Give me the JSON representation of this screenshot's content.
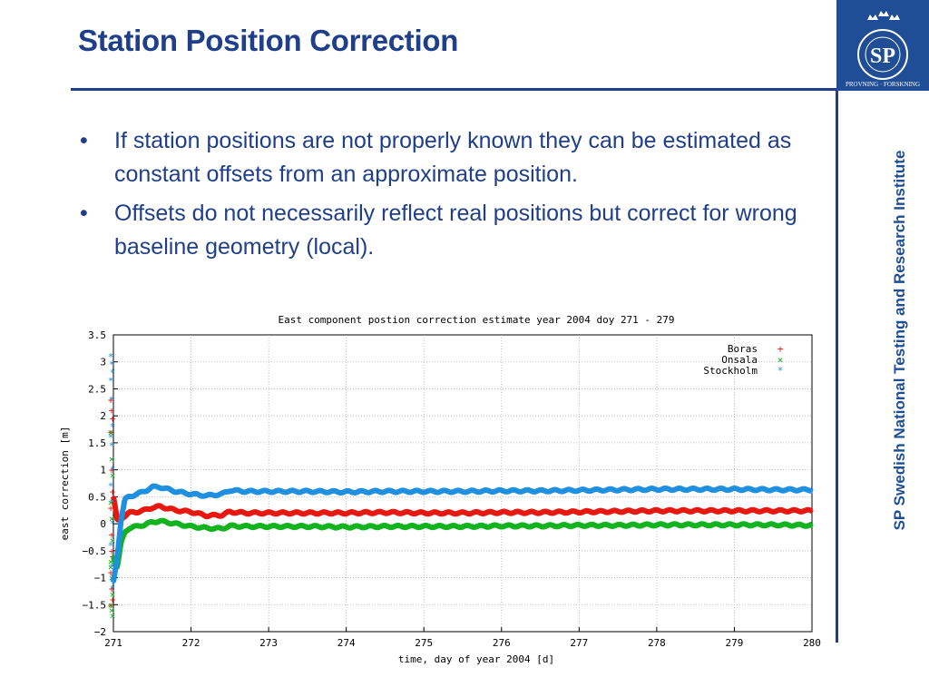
{
  "slide": {
    "title": "Station Position Correction",
    "sidebar_text": "SP Swedish National Testing and Research Institute",
    "logo": {
      "letters": "SP",
      "ring_text": "PROVNING · FORSKNING"
    },
    "bullets": [
      "If station positions are not properly known they can be estimated as constant offsets from an approximate position.",
      "Offsets do not necessarily reflect real positions but correct for wrong baseline geometry (local)."
    ],
    "bullet_symbol": "•",
    "colors": {
      "accent": "#1f3f8a",
      "logo_bg": "#1f4d96"
    }
  },
  "chart_data": {
    "type": "scatter",
    "title": "East component postion correction estimate year 2004 doy 271 - 279",
    "xlabel": "time, day of year 2004 [d]",
    "ylabel": "east correction [m]",
    "xlim": [
      271,
      280
    ],
    "ylim": [
      -2,
      3.5
    ],
    "xticks": [
      271,
      272,
      273,
      274,
      275,
      276,
      277,
      278,
      279,
      280
    ],
    "yticks": [
      -2,
      -1.5,
      -1,
      -0.5,
      0,
      0.5,
      1,
      1.5,
      2,
      2.5,
      3,
      3.5
    ],
    "grid": true,
    "legend_position": "top-right",
    "series": [
      {
        "name": "Boras",
        "marker": "+",
        "color": "#e8170f",
        "x": [
          271.0,
          271.05,
          271.1,
          271.15,
          271.2,
          271.3,
          271.4,
          271.5,
          271.6,
          271.8,
          272.0,
          272.2,
          272.4,
          272.5,
          272.7,
          273.0,
          273.5,
          274.0,
          274.5,
          275.0,
          275.5,
          276.0,
          276.5,
          277.0,
          277.5,
          278.0,
          278.5,
          279.0,
          279.5,
          280.0
        ],
        "y": [
          0.5,
          0.05,
          0.1,
          0.15,
          0.2,
          0.22,
          0.25,
          0.3,
          0.32,
          0.25,
          0.22,
          0.15,
          0.16,
          0.22,
          0.2,
          0.2,
          0.2,
          0.2,
          0.21,
          0.2,
          0.2,
          0.21,
          0.21,
          0.22,
          0.23,
          0.24,
          0.24,
          0.24,
          0.24,
          0.24
        ],
        "scatter_x": [
          271.0,
          271.0,
          271.0,
          271.0,
          271.0,
          271.0,
          271.0,
          271.0,
          271.0,
          271.0,
          271.0,
          271.0,
          271.0,
          271.0
        ],
        "scatter_y": [
          2.3,
          2.1,
          1.95,
          1.7,
          1.0,
          0.6,
          0.3,
          -0.2,
          -0.6,
          -0.9,
          -1.2,
          -1.4,
          -1.5,
          -0.5
        ]
      },
      {
        "name": "Onsala",
        "marker": "×",
        "color": "#13b31f",
        "x": [
          271.0,
          271.05,
          271.1,
          271.15,
          271.2,
          271.3,
          271.4,
          271.5,
          271.6,
          271.8,
          272.0,
          272.2,
          272.4,
          272.5,
          272.7,
          273.0,
          273.5,
          274.0,
          274.5,
          275.0,
          275.5,
          276.0,
          276.5,
          277.0,
          277.5,
          278.0,
          278.5,
          279.0,
          279.5,
          280.0
        ],
        "y": [
          -0.6,
          -0.8,
          -0.35,
          -0.15,
          -0.08,
          -0.05,
          -0.02,
          0.03,
          0.05,
          0.0,
          -0.05,
          -0.08,
          -0.09,
          -0.04,
          -0.05,
          -0.05,
          -0.05,
          -0.06,
          -0.05,
          -0.05,
          -0.05,
          -0.04,
          -0.04,
          -0.03,
          -0.03,
          -0.02,
          -0.02,
          -0.02,
          -0.02,
          -0.03
        ],
        "scatter_x": [
          271.0,
          271.0,
          271.0,
          271.0,
          271.0,
          271.0,
          271.0,
          271.0,
          271.0,
          271.0,
          271.0,
          271.0,
          271.0
        ],
        "scatter_y": [
          1.7,
          1.2,
          0.9,
          0.4,
          0.1,
          -0.3,
          -0.7,
          -1.0,
          -1.3,
          -1.5,
          -1.6,
          -1.7,
          -0.8
        ]
      },
      {
        "name": "Stockholm",
        "marker": "*",
        "color": "#1f8fe0",
        "x": [
          271.0,
          271.05,
          271.1,
          271.15,
          271.2,
          271.3,
          271.4,
          271.5,
          271.6,
          271.8,
          272.0,
          272.2,
          272.4,
          272.5,
          272.7,
          273.0,
          273.5,
          274.0,
          274.5,
          275.0,
          275.5,
          276.0,
          276.5,
          277.0,
          277.5,
          278.0,
          278.5,
          279.0,
          279.5,
          280.0
        ],
        "y": [
          -1.1,
          -0.6,
          0.1,
          0.45,
          0.5,
          0.55,
          0.6,
          0.68,
          0.68,
          0.6,
          0.55,
          0.52,
          0.55,
          0.62,
          0.6,
          0.6,
          0.6,
          0.59,
          0.6,
          0.6,
          0.6,
          0.61,
          0.61,
          0.62,
          0.63,
          0.64,
          0.64,
          0.64,
          0.63,
          0.63
        ],
        "scatter_x": [
          271.0,
          271.0,
          271.0,
          271.0,
          271.0,
          271.0,
          271.0,
          271.0,
          271.0,
          271.0,
          271.0,
          271.0,
          271.0,
          271.0,
          271.0
        ],
        "scatter_y": [
          3.1,
          2.95,
          2.8,
          2.65,
          2.3,
          1.8,
          1.6,
          1.45,
          1.0,
          0.7,
          0.4,
          0.0,
          -0.4,
          -0.8,
          -1.2
        ]
      }
    ]
  }
}
